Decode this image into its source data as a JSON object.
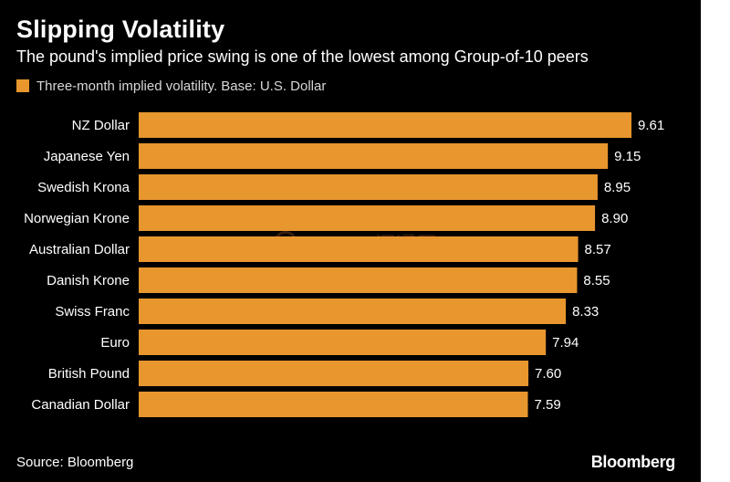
{
  "header": {
    "title": "Slipping Volatility",
    "subtitle": "The pound's implied price swing is one of the lowest among Group-of-10 peers"
  },
  "legend": {
    "label": "Three-month implied volatility. Base: U.S. Dollar",
    "color": "#e8962e"
  },
  "footer": {
    "source": "Source: Bloomberg",
    "brand": "Bloomberg"
  },
  "watermark": {
    "text": "FX678 汇通网"
  },
  "colors": {
    "bar": "#e8962e",
    "background": "#000000",
    "text": "#ffffff"
  },
  "chart_data": {
    "type": "bar",
    "orientation": "horizontal",
    "title": "Slipping Volatility",
    "subtitle": "The pound's implied price swing is one of the lowest among Group-of-10 peers",
    "series_name": "Three-month implied volatility. Base: U.S. Dollar",
    "categories": [
      "NZ Dollar",
      "Japanese Yen",
      "Swedish Krona",
      "Norwegian Krone",
      "Australian Dollar",
      "Danish Krone",
      "Swiss Franc",
      "Euro",
      "British Pound",
      "Canadian Dollar"
    ],
    "values": [
      9.61,
      9.15,
      8.95,
      8.9,
      8.57,
      8.55,
      8.33,
      7.94,
      7.6,
      7.59
    ],
    "labels": [
      "9.61",
      "9.15",
      "8.95",
      "8.90",
      "8.57",
      "8.55",
      "8.33",
      "7.94",
      "7.60",
      "7.59"
    ],
    "xlim": [
      0,
      9.61
    ],
    "xlabel": "",
    "ylabel": "",
    "grid": false,
    "legend_position": "top-left"
  }
}
